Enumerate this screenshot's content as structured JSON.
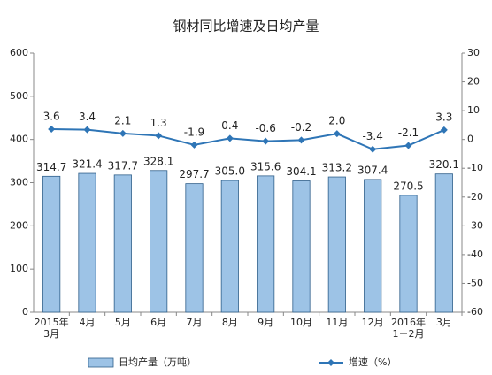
{
  "chart_data": {
    "type": "bar-line",
    "title": "钢材同比增速及日均产量",
    "categories": [
      "2015年3月",
      "4月",
      "5月",
      "6月",
      "7月",
      "8月",
      "9月",
      "10月",
      "11月",
      "12月",
      "2016年1－2月",
      "3月"
    ],
    "series": [
      {
        "name": "日均产量（万吨）",
        "type": "bar",
        "color": "#9dc3e6",
        "border": "#2f5f8a",
        "values": [
          314.7,
          321.4,
          317.7,
          328.1,
          297.7,
          305.0,
          315.6,
          304.1,
          313.2,
          307.4,
          270.5,
          320.1
        ],
        "value_labels": [
          "314.7",
          "321.4",
          "317.7",
          "328.1",
          "297.7",
          "305.0",
          "315.6",
          "304.1",
          "313.2",
          "307.4",
          "270.5",
          "320.1"
        ]
      },
      {
        "name": "增速（%）",
        "type": "line",
        "axis": "y2",
        "color": "#2e75b6",
        "values": [
          3.6,
          3.4,
          2.1,
          1.3,
          -1.9,
          0.4,
          -0.6,
          -0.2,
          2.0,
          -3.4,
          -2.1,
          3.3
        ],
        "value_labels": [
          "3.6",
          "3.4",
          "2.1",
          "1.3",
          "-1.9",
          "0.4",
          "-0.6",
          "-0.2",
          "2.0",
          "-3.4",
          "-2.1",
          "3.3"
        ]
      }
    ],
    "ylim": [
      0,
      600
    ],
    "yticks": [
      0,
      100,
      200,
      300,
      400,
      500,
      600
    ],
    "y2lim": [
      -60,
      30
    ],
    "y2ticks": [
      -60,
      -50,
      -40,
      -30,
      -20,
      -10,
      0,
      10,
      20,
      30
    ],
    "legend": "bottom"
  }
}
